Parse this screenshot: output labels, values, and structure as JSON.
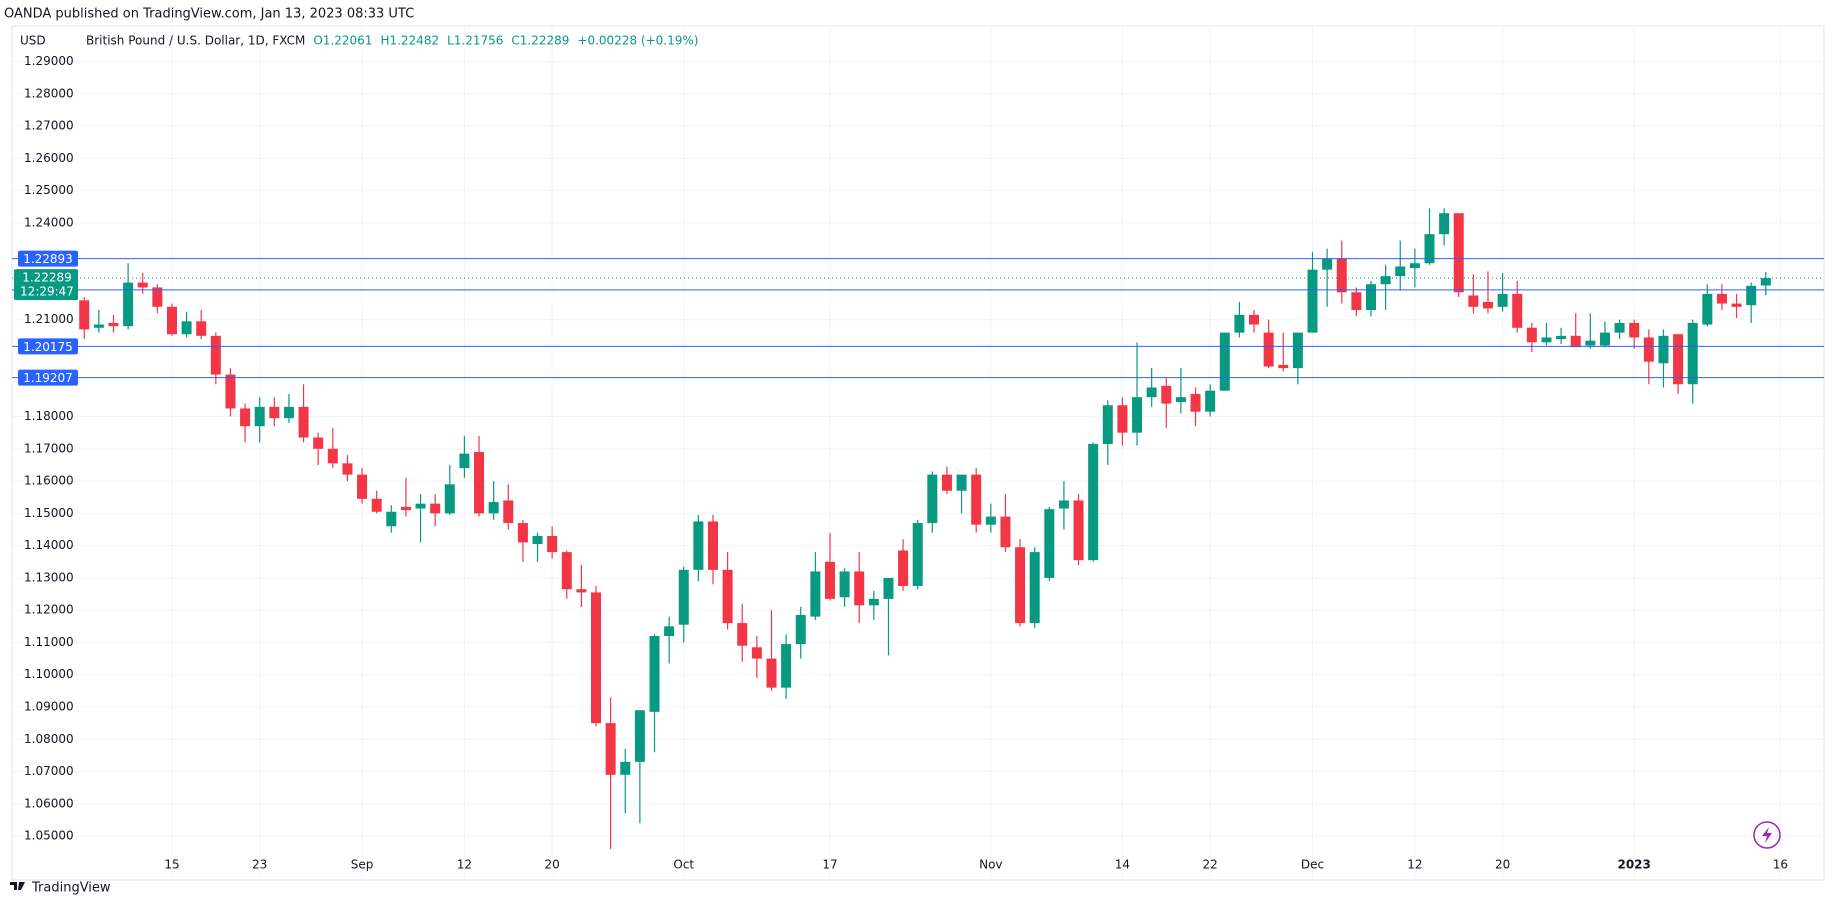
{
  "header": {
    "published": "OANDA published on TradingView.com, Jan 13, 2023 08:33 UTC"
  },
  "chart_data": {
    "type": "candlestick",
    "currency": "USD",
    "legend": {
      "symbol": "British Pound / U.S. Dollar, 1D, FXCM",
      "items": [
        "O1.22061",
        "H1.22482",
        "L1.21756",
        "C1.22289",
        "+0.00228 (+0.19%)"
      ]
    },
    "up_color": "#089981",
    "down_color": "#f23645",
    "open": [
      1.216,
      1.2075,
      1.209,
      1.208,
      1.2215,
      1.22,
      1.214,
      1.2055,
      1.2095,
      1.205,
      1.193,
      1.1825,
      1.177,
      1.183,
      1.1795,
      1.183,
      1.1735,
      1.17,
      1.1655,
      1.162,
      1.1545,
      1.146,
      1.152,
      1.1515,
      1.153,
      1.15,
      1.164,
      1.169,
      1.15,
      1.154,
      1.147,
      1.1405,
      1.143,
      1.138,
      1.1265,
      1.1255,
      1.085,
      1.069,
      1.073,
      1.0885,
      1.112,
      1.1155,
      1.1325,
      1.1475,
      1.1325,
      1.116,
      1.1085,
      1.105,
      1.096,
      1.1095,
      1.118,
      1.135,
      1.124,
      1.132,
      1.1215,
      1.1235,
      1.1385,
      1.1275,
      1.147,
      1.162,
      1.157,
      1.162,
      1.1465,
      1.149,
      1.1395,
      1.116,
      1.13,
      1.1515,
      1.154,
      1.1355,
      1.1715,
      1.1835,
      1.175,
      1.186,
      1.1895,
      1.1845,
      1.187,
      1.1815,
      1.188,
      1.206,
      1.2115,
      1.206,
      1.196,
      1.195,
      1.206,
      1.2255,
      1.229,
      1.2185,
      1.213,
      1.221,
      1.2235,
      1.226,
      1.2275,
      1.2365,
      1.243,
      1.2175,
      1.2155,
      1.214,
      1.218,
      1.2075,
      1.203,
      1.204,
      1.205,
      1.202,
      1.202,
      1.206,
      1.209,
      1.2045,
      1.1965,
      1.2055,
      1.19,
      1.2085,
      1.218,
      1.215,
      1.2145,
      1.2206
    ],
    "high": [
      1.217,
      1.213,
      1.2115,
      1.2275,
      1.2245,
      1.221,
      1.215,
      1.2125,
      1.213,
      1.206,
      1.195,
      1.184,
      1.186,
      1.186,
      1.187,
      1.19,
      1.175,
      1.1765,
      1.168,
      1.164,
      1.157,
      1.1525,
      1.161,
      1.156,
      1.156,
      1.165,
      1.174,
      1.174,
      1.16,
      1.159,
      1.148,
      1.144,
      1.146,
      1.1385,
      1.134,
      1.1275,
      1.093,
      1.077,
      1.088,
      1.1125,
      1.118,
      1.1335,
      1.1495,
      1.1495,
      1.138,
      1.122,
      1.112,
      1.12,
      1.1125,
      1.121,
      1.138,
      1.144,
      1.133,
      1.138,
      1.126,
      1.13,
      1.142,
      1.148,
      1.163,
      1.1645,
      1.1615,
      1.164,
      1.153,
      1.156,
      1.142,
      1.1395,
      1.152,
      1.16,
      1.156,
      1.172,
      1.185,
      1.186,
      1.203,
      1.195,
      1.192,
      1.195,
      1.189,
      1.19,
      1.206,
      1.2155,
      1.213,
      1.21,
      1.206,
      1.206,
      1.231,
      1.232,
      1.2345,
      1.22,
      1.222,
      1.227,
      1.2345,
      1.232,
      1.2445,
      1.2445,
      1.243,
      1.224,
      1.225,
      1.2245,
      1.222,
      1.209,
      1.209,
      1.2075,
      1.212,
      1.212,
      1.2095,
      1.21,
      1.21,
      1.207,
      1.207,
      1.2055,
      1.21,
      1.221,
      1.221,
      1.218,
      1.2215,
      1.2248
    ],
    "low": [
      1.204,
      1.206,
      1.206,
      1.207,
      1.218,
      1.212,
      1.205,
      1.2045,
      1.204,
      1.19,
      1.18,
      1.172,
      1.172,
      1.177,
      1.178,
      1.172,
      1.165,
      1.164,
      1.16,
      1.153,
      1.15,
      1.144,
      1.149,
      1.141,
      1.146,
      1.1495,
      1.161,
      1.149,
      1.148,
      1.145,
      1.135,
      1.135,
      1.136,
      1.1235,
      1.121,
      1.084,
      1.046,
      1.057,
      1.054,
      1.076,
      1.1035,
      1.11,
      1.129,
      1.128,
      1.114,
      1.104,
      1.099,
      1.095,
      1.0925,
      1.105,
      1.117,
      1.123,
      1.121,
      1.116,
      1.117,
      1.106,
      1.126,
      1.1265,
      1.144,
      1.156,
      1.15,
      1.144,
      1.144,
      1.138,
      1.115,
      1.1145,
      1.129,
      1.145,
      1.134,
      1.135,
      1.165,
      1.171,
      1.171,
      1.183,
      1.1765,
      1.181,
      1.177,
      1.18,
      1.188,
      1.2045,
      1.206,
      1.195,
      1.194,
      1.19,
      1.206,
      1.214,
      1.215,
      1.211,
      1.211,
      1.213,
      1.219,
      1.22,
      1.227,
      1.233,
      1.217,
      1.212,
      1.212,
      1.2125,
      1.206,
      1.2,
      1.202,
      1.2025,
      1.2015,
      1.201,
      1.2015,
      1.204,
      1.201,
      1.19,
      1.189,
      1.187,
      1.184,
      1.208,
      1.213,
      1.2105,
      1.209,
      1.2176
    ],
    "close": [
      1.207,
      1.2085,
      1.208,
      1.2215,
      1.22,
      1.214,
      1.2055,
      1.2095,
      1.205,
      1.193,
      1.1825,
      1.177,
      1.183,
      1.1795,
      1.183,
      1.1735,
      1.17,
      1.1655,
      1.162,
      1.1545,
      1.1505,
      1.1505,
      1.151,
      1.153,
      1.15,
      1.159,
      1.1685,
      1.15,
      1.1535,
      1.147,
      1.141,
      1.143,
      1.138,
      1.1265,
      1.1255,
      1.085,
      1.069,
      1.073,
      1.089,
      1.112,
      1.115,
      1.1325,
      1.1475,
      1.1325,
      1.116,
      1.109,
      1.105,
      1.096,
      1.1095,
      1.1185,
      1.132,
      1.1235,
      1.132,
      1.1215,
      1.1235,
      1.13,
      1.1275,
      1.147,
      1.162,
      1.157,
      1.162,
      1.1465,
      1.149,
      1.1395,
      1.116,
      1.138,
      1.1513,
      1.154,
      1.1355,
      1.1715,
      1.1835,
      1.175,
      1.186,
      1.189,
      1.184,
      1.186,
      1.1815,
      1.188,
      1.206,
      1.2115,
      1.2085,
      1.1955,
      1.195,
      1.206,
      1.2255,
      1.229,
      1.2185,
      1.213,
      1.221,
      1.2235,
      1.2265,
      1.2275,
      1.2365,
      1.243,
      1.2185,
      1.214,
      1.2135,
      1.218,
      1.2075,
      1.203,
      1.2045,
      1.205,
      1.2015,
      1.2035,
      1.206,
      1.209,
      1.2045,
      1.197,
      1.205,
      1.19,
      1.209,
      1.218,
      1.215,
      1.214,
      1.2205,
      1.2229
    ],
    "xlim": [
      -4.94,
      118.98
    ],
    "xticks": [
      {
        "value": 6,
        "label": "15"
      },
      {
        "value": 12,
        "label": "23"
      },
      {
        "value": 19,
        "label": "Sep"
      },
      {
        "value": 26,
        "label": "12"
      },
      {
        "value": 32,
        "label": "20"
      },
      {
        "value": 41,
        "label": "Oct"
      },
      {
        "value": 51,
        "label": "17"
      },
      {
        "value": 62,
        "label": "Nov"
      },
      {
        "value": 71,
        "label": "14"
      },
      {
        "value": 77,
        "label": "22"
      },
      {
        "value": 84,
        "label": "Dec"
      },
      {
        "value": 91,
        "label": "12"
      },
      {
        "value": 97,
        "label": "20"
      },
      {
        "value": 106,
        "label": "2023"
      },
      {
        "value": 116,
        "label": "16"
      }
    ],
    "ylim": [
      1.0364,
      1.301
    ],
    "yticks": [
      {
        "value": 1.29,
        "label": "1.29000"
      },
      {
        "value": 1.28,
        "label": "1.28000"
      },
      {
        "value": 1.27,
        "label": "1.27000"
      },
      {
        "value": 1.26,
        "label": "1.26000"
      },
      {
        "value": 1.25,
        "label": "1.25000"
      },
      {
        "value": 1.24,
        "label": "1.24000"
      },
      {
        "value": 1.21,
        "label": "1.21000"
      },
      {
        "value": 1.18,
        "label": "1.18000"
      },
      {
        "value": 1.17,
        "label": "1.17000"
      },
      {
        "value": 1.16,
        "label": "1.16000"
      },
      {
        "value": 1.15,
        "label": "1.15000"
      },
      {
        "value": 1.14,
        "label": "1.14000"
      },
      {
        "value": 1.13,
        "label": "1.13000"
      },
      {
        "value": 1.12,
        "label": "1.12000"
      },
      {
        "value": 1.11,
        "label": "1.11000"
      },
      {
        "value": 1.1,
        "label": "1.10000"
      },
      {
        "value": 1.09,
        "label": "1.09000"
      },
      {
        "value": 1.08,
        "label": "1.08000"
      },
      {
        "value": 1.07,
        "label": "1.07000"
      },
      {
        "value": 1.06,
        "label": "1.06000"
      },
      {
        "value": 1.05,
        "label": "1.05000"
      }
    ],
    "grid": true,
    "hlines": [
      1.22893,
      1.21925,
      1.20175,
      1.19207
    ],
    "hline_color": "#2962ff",
    "last_price": 1.22289,
    "countdown": "12:29:47"
  },
  "footer": {
    "brand": "TradingView"
  }
}
